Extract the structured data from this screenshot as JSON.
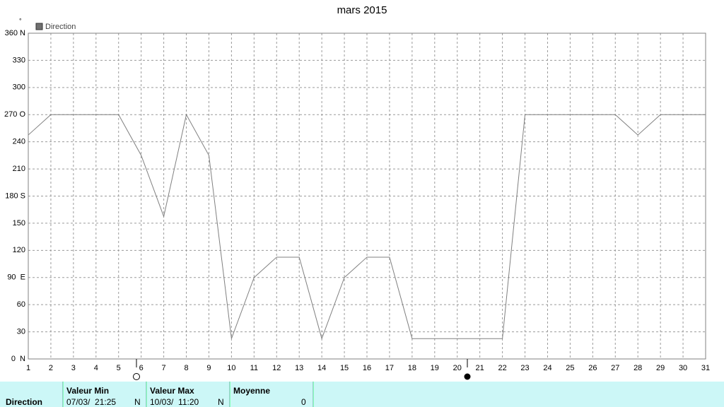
{
  "chart_data": {
    "type": "line",
    "title": "mars 2015",
    "y_unit": "°",
    "x": [
      1,
      2,
      3,
      4,
      5,
      6,
      7,
      8,
      9,
      10,
      11,
      12,
      13,
      14,
      15,
      16,
      17,
      18,
      19,
      20,
      21,
      22,
      23,
      24,
      25,
      26,
      27,
      28,
      29,
      30,
      31
    ],
    "xlim": [
      1,
      31
    ],
    "xticks": [
      1,
      2,
      3,
      4,
      5,
      6,
      7,
      8,
      9,
      10,
      11,
      12,
      13,
      14,
      15,
      16,
      17,
      18,
      19,
      20,
      21,
      22,
      23,
      24,
      25,
      26,
      27,
      28,
      29,
      30,
      31
    ],
    "series": [
      {
        "name": "Direction",
        "color": "#808080",
        "values": [
          247.5,
          270,
          270,
          270,
          270,
          225,
          157.5,
          270,
          225,
          22.5,
          90,
          112.5,
          112.5,
          22.5,
          90,
          112.5,
          112.5,
          22.5,
          22.5,
          22.5,
          22.5,
          22.5,
          270,
          270,
          270,
          270,
          270,
          247.5,
          270,
          270,
          270
        ]
      }
    ],
    "ylim": [
      0,
      360
    ],
    "yticks": [
      {
        "value": 0,
        "label": "0  N"
      },
      30,
      60,
      {
        "value": 90,
        "label": "90  E"
      },
      120,
      150,
      {
        "value": 180,
        "label": "180 S"
      },
      210,
      240,
      {
        "value": 270,
        "label": "270 O"
      },
      300,
      330,
      {
        "value": 360,
        "label": "360 N"
      }
    ],
    "grid": true,
    "legend": "top-left"
  },
  "stats": {
    "row_label": "Direction",
    "columns": [
      {
        "header": "Valeur Min",
        "date": "07/03/  21:25",
        "value": "N"
      },
      {
        "header": "Valeur Max",
        "date": "10/03/  11:20",
        "value": "N"
      },
      {
        "header": "Moyenne",
        "value": 0
      }
    ]
  }
}
